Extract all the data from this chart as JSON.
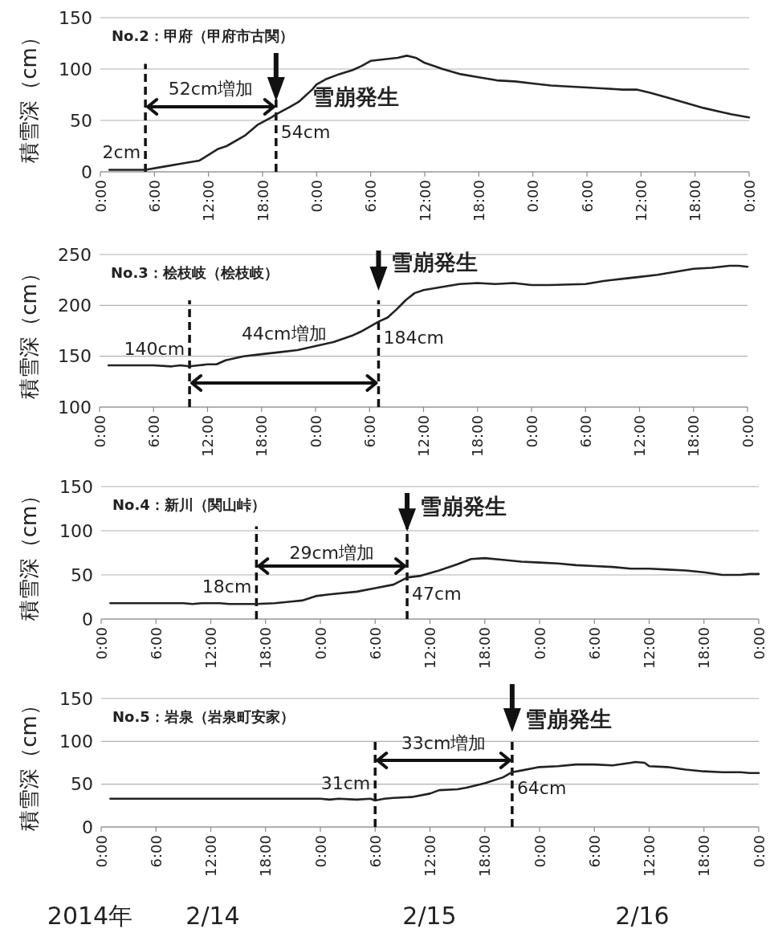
{
  "chart_data": [
    {
      "type": "line",
      "title": "No.2：甲府（甲府市古関）",
      "ylabel": "積雪深（cm）",
      "color": "#222222",
      "grid": "y",
      "xlim": [
        "2014-02-14T00:00",
        "2014-02-17T00:00"
      ],
      "ylim": [
        0,
        150
      ],
      "yticks": [
        0,
        50,
        100,
        150
      ],
      "xticks": [
        {
          "value": "2014-02-14T00:00",
          "label": "0:00"
        },
        {
          "value": "2014-02-14T06:00",
          "label": "6:00"
        },
        {
          "value": "2014-02-14T12:00",
          "label": "12:00"
        },
        {
          "value": "2014-02-14T18:00",
          "label": "18:00"
        },
        {
          "value": "2014-02-15T00:00",
          "label": "0:00"
        },
        {
          "value": "2014-02-15T06:00",
          "label": "6:00"
        },
        {
          "value": "2014-02-15T12:00",
          "label": "12:00"
        },
        {
          "value": "2014-02-15T18:00",
          "label": "18:00"
        },
        {
          "value": "2014-02-16T00:00",
          "label": "0:00"
        },
        {
          "value": "2014-02-16T06:00",
          "label": "6:00"
        },
        {
          "value": "2014-02-16T12:00",
          "label": "12:00"
        },
        {
          "value": "2014-02-16T18:00",
          "label": "18:00"
        },
        {
          "value": "2014-02-17T00:00",
          "label": "0:00"
        }
      ],
      "x": [
        "2014-02-14T01:00",
        "2014-02-14T05:00",
        "2014-02-14T07:00",
        "2014-02-14T09:00",
        "2014-02-14T11:00",
        "2014-02-14T13:00",
        "2014-02-14T14:00",
        "2014-02-14T16:00",
        "2014-02-14T17:30",
        "2014-02-14T19:00",
        "2014-02-14T19:30",
        "2014-02-14T21:00",
        "2014-02-14T22:00",
        "2014-02-14T23:30",
        "2014-02-15T00:00",
        "2014-02-15T01:00",
        "2014-02-15T02:30",
        "2014-02-15T04:00",
        "2014-02-15T05:00",
        "2014-02-15T06:00",
        "2014-02-15T07:00",
        "2014-02-15T09:00",
        "2014-02-15T10:00",
        "2014-02-15T11:00",
        "2014-02-15T12:00",
        "2014-02-15T14:00",
        "2014-02-15T16:00",
        "2014-02-15T18:00",
        "2014-02-15T20:00",
        "2014-02-15T22:00",
        "2014-02-16T00:00",
        "2014-02-16T02:00",
        "2014-02-16T04:00",
        "2014-02-16T06:00",
        "2014-02-16T08:00",
        "2014-02-16T10:00",
        "2014-02-16T11:30",
        "2014-02-16T13:00",
        "2014-02-16T15:00",
        "2014-02-16T17:00",
        "2014-02-16T19:00",
        "2014-02-16T21:00",
        "2014-02-16T22:00",
        "2014-02-17T00:00"
      ],
      "values": [
        2,
        2,
        5,
        8,
        11,
        22,
        25,
        35,
        46,
        53,
        56,
        63,
        68,
        80,
        85,
        90,
        95,
        99,
        103,
        108,
        109,
        111,
        113,
        111,
        106,
        100,
        95,
        92,
        89,
        88,
        86,
        84,
        83,
        82,
        81,
        80,
        80,
        77,
        72,
        67,
        62,
        58,
        56,
        53
      ],
      "ref_lines": [
        {
          "axis": "x",
          "value": "2014-02-14T05:00",
          "line_style": "dashed"
        },
        {
          "axis": "x",
          "value": "2014-02-14T19:30",
          "line_style": "dashed"
        }
      ],
      "annotations": [
        {
          "text": "2cm",
          "x": "2014-02-14T05:00",
          "y": 2
        },
        {
          "text": "54cm",
          "x": "2014-02-14T19:30",
          "y": 54
        },
        "52cm増加",
        "雪崩発生"
      ]
    },
    {
      "type": "line",
      "title": "No.3：桧枝岐（桧枝岐）",
      "ylabel": "積雪深（cm）",
      "color": "#222222",
      "grid": "y",
      "xlim": [
        "2014-02-14T00:00",
        "2014-02-17T00:00"
      ],
      "ylim": [
        100,
        250
      ],
      "yticks": [
        100,
        150,
        200,
        250
      ],
      "xticks": [
        {
          "value": "2014-02-14T00:00",
          "label": "0:00"
        },
        {
          "value": "2014-02-14T06:00",
          "label": "6:00"
        },
        {
          "value": "2014-02-14T12:00",
          "label": "12:00"
        },
        {
          "value": "2014-02-14T18:00",
          "label": "18:00"
        },
        {
          "value": "2014-02-15T00:00",
          "label": "0:00"
        },
        {
          "value": "2014-02-15T06:00",
          "label": "6:00"
        },
        {
          "value": "2014-02-15T12:00",
          "label": "12:00"
        },
        {
          "value": "2014-02-15T18:00",
          "label": "18:00"
        },
        {
          "value": "2014-02-16T00:00",
          "label": "0:00"
        },
        {
          "value": "2014-02-16T06:00",
          "label": "6:00"
        },
        {
          "value": "2014-02-16T12:00",
          "label": "12:00"
        },
        {
          "value": "2014-02-16T18:00",
          "label": "18:00"
        },
        {
          "value": "2014-02-17T00:00",
          "label": "0:00"
        }
      ],
      "x": [
        "2014-02-14T01:00",
        "2014-02-14T06:00",
        "2014-02-14T08:00",
        "2014-02-14T09:00",
        "2014-02-14T10:00",
        "2014-02-14T11:00",
        "2014-02-14T12:00",
        "2014-02-14T13:00",
        "2014-02-14T14:00",
        "2014-02-14T16:00",
        "2014-02-14T18:00",
        "2014-02-14T20:00",
        "2014-02-14T22:00",
        "2014-02-15T00:00",
        "2014-02-15T02:00",
        "2014-02-15T04:00",
        "2014-02-15T05:00",
        "2014-02-15T07:00",
        "2014-02-15T08:00",
        "2014-02-15T09:00",
        "2014-02-15T10:00",
        "2014-02-15T11:00",
        "2014-02-15T12:00",
        "2014-02-15T14:00",
        "2014-02-15T16:00",
        "2014-02-15T18:00",
        "2014-02-15T20:00",
        "2014-02-15T22:00",
        "2014-02-16T00:00",
        "2014-02-16T02:00",
        "2014-02-16T06:00",
        "2014-02-16T08:00",
        "2014-02-16T10:00",
        "2014-02-16T12:00",
        "2014-02-16T14:00",
        "2014-02-16T16:00",
        "2014-02-16T18:00",
        "2014-02-16T20:00",
        "2014-02-16T22:00",
        "2014-02-16T23:00",
        "2014-02-17T00:00"
      ],
      "values": [
        141,
        141,
        140,
        141,
        140,
        141,
        142,
        142,
        146,
        150,
        152,
        154,
        156,
        160,
        164,
        170,
        174,
        184,
        188,
        196,
        205,
        212,
        215,
        218,
        221,
        222,
        221,
        222,
        220,
        220,
        221,
        224,
        226,
        228,
        230,
        233,
        236,
        237,
        239,
        239,
        238
      ],
      "ref_lines": [
        {
          "axis": "x",
          "value": "2014-02-14T10:00",
          "line_style": "dashed"
        },
        {
          "axis": "x",
          "value": "2014-02-15T07:00",
          "line_style": "dashed"
        }
      ],
      "annotations": [
        {
          "text": "140cm",
          "x": "2014-02-14T10:00",
          "y": 140
        },
        {
          "text": "184cm",
          "x": "2014-02-15T07:00",
          "y": 184
        },
        "44cm増加",
        "雪崩発生"
      ]
    },
    {
      "type": "line",
      "title": "No.4：新川（関山峠）",
      "ylabel": "積雪深（cm）",
      "color": "#222222",
      "grid": "y",
      "xlim": [
        "2014-02-14T00:00",
        "2014-02-17T00:00"
      ],
      "ylim": [
        0,
        150
      ],
      "yticks": [
        0,
        50,
        100,
        150
      ],
      "xticks": [
        {
          "value": "2014-02-14T00:00",
          "label": "0:00"
        },
        {
          "value": "2014-02-14T06:00",
          "label": "6:00"
        },
        {
          "value": "2014-02-14T12:00",
          "label": "12:00"
        },
        {
          "value": "2014-02-14T18:00",
          "label": "18:00"
        },
        {
          "value": "2014-02-15T00:00",
          "label": "0:00"
        },
        {
          "value": "2014-02-15T06:00",
          "label": "6:00"
        },
        {
          "value": "2014-02-15T12:00",
          "label": "12:00"
        },
        {
          "value": "2014-02-15T18:00",
          "label": "18:00"
        },
        {
          "value": "2014-02-16T00:00",
          "label": "0:00"
        },
        {
          "value": "2014-02-16T06:00",
          "label": "6:00"
        },
        {
          "value": "2014-02-16T12:00",
          "label": "12:00"
        },
        {
          "value": "2014-02-16T18:00",
          "label": "18:00"
        },
        {
          "value": "2014-02-17T00:00",
          "label": "0:00"
        }
      ],
      "x": [
        "2014-02-14T01:00",
        "2014-02-14T09:00",
        "2014-02-14T10:00",
        "2014-02-14T11:00",
        "2014-02-14T13:00",
        "2014-02-14T14:00",
        "2014-02-14T17:00",
        "2014-02-14T19:00",
        "2014-02-14T21:00",
        "2014-02-14T22:00",
        "2014-02-14T23:30",
        "2014-02-15T01:00",
        "2014-02-15T04:00",
        "2014-02-15T06:00",
        "2014-02-15T08:00",
        "2014-02-15T09:30",
        "2014-02-15T11:00",
        "2014-02-15T13:00",
        "2014-02-15T15:00",
        "2014-02-15T16:30",
        "2014-02-15T18:00",
        "2014-02-15T20:00",
        "2014-02-15T22:00",
        "2014-02-16T00:00",
        "2014-02-16T02:00",
        "2014-02-16T04:00",
        "2014-02-16T06:00",
        "2014-02-16T08:00",
        "2014-02-16T10:00",
        "2014-02-16T12:00",
        "2014-02-16T14:00",
        "2014-02-16T16:00",
        "2014-02-16T18:00",
        "2014-02-16T20:00",
        "2014-02-16T22:00",
        "2014-02-16T23:00",
        "2014-02-17T00:00"
      ],
      "values": [
        18,
        18,
        17,
        18,
        18,
        17,
        17,
        18,
        20,
        21,
        26,
        28,
        31,
        35,
        39,
        47,
        49,
        55,
        62,
        68,
        69,
        67,
        65,
        64,
        63,
        61,
        60,
        59,
        57,
        57,
        56,
        55,
        53,
        50,
        50,
        51,
        51
      ],
      "ref_lines": [
        {
          "axis": "x",
          "value": "2014-02-14T17:00",
          "line_style": "dashed"
        },
        {
          "axis": "x",
          "value": "2014-02-15T09:30",
          "line_style": "dashed"
        }
      ],
      "annotations": [
        {
          "text": "18cm",
          "x": "2014-02-14T17:00",
          "y": 17
        },
        {
          "text": "47cm",
          "x": "2014-02-15T09:30",
          "y": 47
        },
        "29cm増加",
        "雪崩発生"
      ]
    },
    {
      "type": "line",
      "title": "No.5：岩泉（岩泉町安家）",
      "ylabel": "積雪深（cm）",
      "color": "#222222",
      "grid": "y",
      "xlim": [
        "2014-02-14T00:00",
        "2014-02-17T00:00"
      ],
      "ylim": [
        0,
        150
      ],
      "yticks": [
        0,
        50,
        100,
        150
      ],
      "xticks": [
        {
          "value": "2014-02-14T00:00",
          "label": "0:00"
        },
        {
          "value": "2014-02-14T06:00",
          "label": "6:00"
        },
        {
          "value": "2014-02-14T12:00",
          "label": "12:00"
        },
        {
          "value": "2014-02-14T18:00",
          "label": "18:00"
        },
        {
          "value": "2014-02-15T00:00",
          "label": "0:00"
        },
        {
          "value": "2014-02-15T06:00",
          "label": "6:00"
        },
        {
          "value": "2014-02-15T12:00",
          "label": "12:00"
        },
        {
          "value": "2014-02-15T18:00",
          "label": "18:00"
        },
        {
          "value": "2014-02-16T00:00",
          "label": "0:00"
        },
        {
          "value": "2014-02-16T06:00",
          "label": "6:00"
        },
        {
          "value": "2014-02-16T12:00",
          "label": "12:00"
        },
        {
          "value": "2014-02-16T18:00",
          "label": "18:00"
        },
        {
          "value": "2014-02-17T00:00",
          "label": "0:00"
        }
      ],
      "x": [
        "2014-02-14T01:00",
        "2014-02-15T00:00",
        "2014-02-15T01:00",
        "2014-02-15T02:00",
        "2014-02-15T04:00",
        "2014-02-15T05:30",
        "2014-02-15T06:00",
        "2014-02-15T07:00",
        "2014-02-15T08:00",
        "2014-02-15T10:00",
        "2014-02-15T12:00",
        "2014-02-15T13:00",
        "2014-02-15T15:00",
        "2014-02-15T16:00",
        "2014-02-15T18:00",
        "2014-02-15T20:00",
        "2014-02-15T21:00",
        "2014-02-15T22:00",
        "2014-02-16T00:00",
        "2014-02-16T02:00",
        "2014-02-16T04:00",
        "2014-02-16T06:00",
        "2014-02-16T08:00",
        "2014-02-16T10:00",
        "2014-02-16T10:30",
        "2014-02-16T11:30",
        "2014-02-16T12:00",
        "2014-02-16T14:00",
        "2014-02-16T16:00",
        "2014-02-16T18:00",
        "2014-02-16T20:00",
        "2014-02-16T22:00",
        "2014-02-16T23:00",
        "2014-02-17T00:00"
      ],
      "values": [
        33,
        33,
        32,
        33,
        32,
        33,
        31,
        33,
        34,
        35,
        39,
        43,
        44,
        46,
        51,
        58,
        64,
        66,
        70,
        71,
        73,
        73,
        72,
        75,
        76,
        75,
        71,
        70,
        67,
        65,
        64,
        64,
        63,
        63
      ],
      "ref_lines": [
        {
          "axis": "x",
          "value": "2014-02-15T06:00",
          "line_style": "dashed"
        },
        {
          "axis": "x",
          "value": "2014-02-15T21:00",
          "line_style": "dashed"
        }
      ],
      "annotations": [
        {
          "text": "31cm",
          "x": "2014-02-15T06:00",
          "y": 31
        },
        {
          "text": "64cm",
          "x": "2014-02-15T21:00",
          "y": 64
        },
        "33cm増加",
        "雪崩発生",
        "2014年",
        "2/14",
        "2/15",
        "2/16"
      ]
    }
  ]
}
